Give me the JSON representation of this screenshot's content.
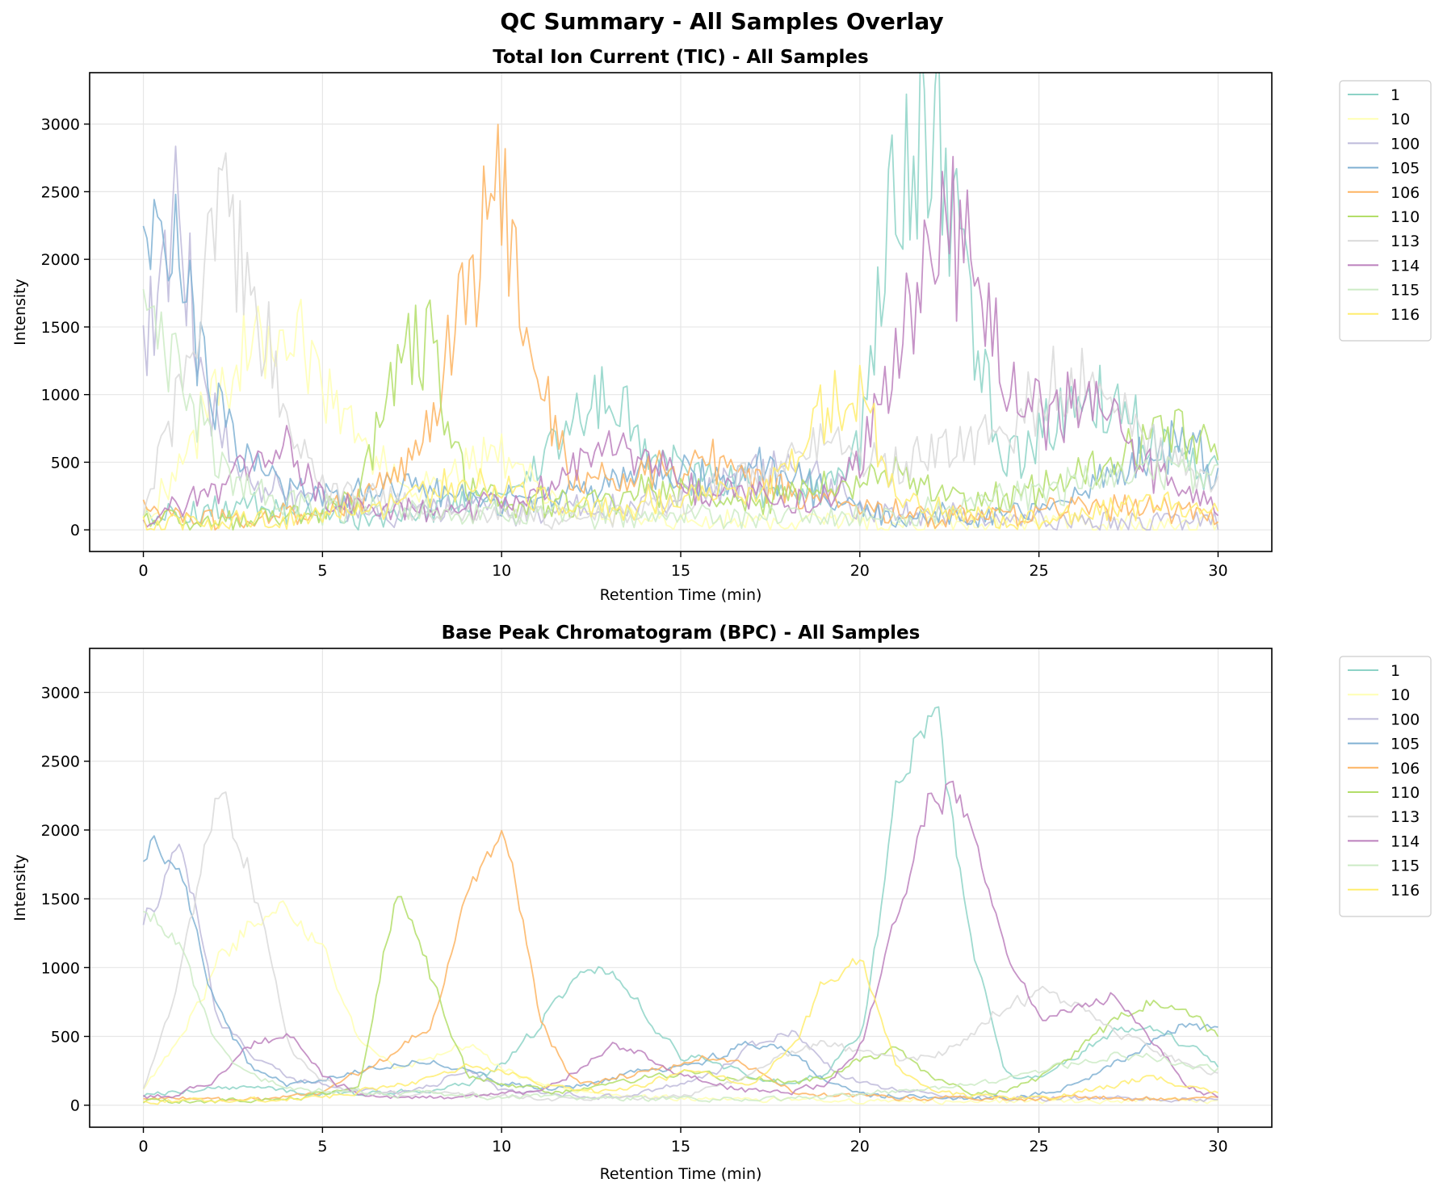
{
  "figure": {
    "suptitle": "QC Summary - All Samples Overlay"
  },
  "series_meta": [
    {
      "name": "1",
      "color": "#8dd3c7"
    },
    {
      "name": "10",
      "color": "#ffffb3"
    },
    {
      "name": "100",
      "color": "#bebada"
    },
    {
      "name": "105",
      "color": "#80b1d3"
    },
    {
      "name": "106",
      "color": "#fdb462"
    },
    {
      "name": "110",
      "color": "#b3de69"
    },
    {
      "name": "113",
      "color": "#d9d9d9"
    },
    {
      "name": "114",
      "color": "#bc80bd"
    },
    {
      "name": "115",
      "color": "#ccebc5"
    },
    {
      "name": "116",
      "color": "#ffed6f"
    }
  ],
  "chart_data": [
    {
      "type": "line",
      "title": "Total Ion Current (TIC) - All Samples",
      "xlabel": "Retention Time (min)",
      "ylabel": "Intensity",
      "xlim": [
        -1.5,
        31.5
      ],
      "ylim": [
        -160,
        3380
      ],
      "xticks": [
        0,
        5,
        10,
        15,
        20,
        25,
        30
      ],
      "yticks": [
        0,
        500,
        1000,
        1500,
        2000,
        2500,
        3000
      ],
      "grid": true,
      "legend": "outside-right",
      "x": [
        0,
        1,
        2,
        3,
        4,
        5,
        6,
        7,
        8,
        9,
        10,
        11,
        12,
        13,
        14,
        15,
        16,
        17,
        18,
        19,
        20,
        21,
        22,
        23,
        24,
        25,
        26,
        27,
        28,
        29,
        30
      ],
      "series": [
        {
          "name": "1",
          "values": [
            80,
            120,
            150,
            200,
            130,
            110,
            90,
            100,
            150,
            200,
            250,
            450,
            850,
            1000,
            700,
            450,
            400,
            350,
            250,
            350,
            600,
            2500,
            3100,
            1800,
            500,
            700,
            950,
            1000,
            700,
            500,
            500
          ]
        },
        {
          "name": "10",
          "values": [
            100,
            500,
            1000,
            1300,
            1450,
            1100,
            650,
            350,
            300,
            450,
            600,
            300,
            150,
            120,
            100,
            100,
            80,
            70,
            60,
            50,
            50,
            40,
            40,
            40,
            40,
            40,
            40,
            40,
            40,
            40,
            40
          ]
        },
        {
          "name": "100",
          "values": [
            1400,
            2300,
            800,
            350,
            300,
            200,
            150,
            120,
            150,
            200,
            150,
            120,
            150,
            150,
            200,
            250,
            300,
            400,
            450,
            350,
            150,
            120,
            100,
            100,
            80,
            80,
            60,
            60,
            60,
            60,
            60
          ]
        },
        {
          "name": "105",
          "values": [
            2050,
            1950,
            950,
            500,
            300,
            250,
            300,
            350,
            300,
            250,
            200,
            250,
            300,
            350,
            400,
            400,
            400,
            450,
            400,
            250,
            150,
            100,
            100,
            100,
            100,
            150,
            250,
            400,
            550,
            650,
            400
          ]
        },
        {
          "name": "106",
          "values": [
            150,
            100,
            80,
            80,
            100,
            120,
            250,
            450,
            800,
            1900,
            2500,
            1200,
            350,
            350,
            400,
            450,
            500,
            400,
            300,
            200,
            150,
            120,
            100,
            100,
            100,
            120,
            150,
            150,
            200,
            150,
            100
          ]
        },
        {
          "name": "110",
          "values": [
            60,
            80,
            80,
            80,
            100,
            150,
            200,
            1300,
            1500,
            300,
            200,
            200,
            200,
            250,
            300,
            300,
            250,
            250,
            250,
            300,
            400,
            400,
            300,
            250,
            250,
            300,
            400,
            550,
            700,
            750,
            600
          ]
        },
        {
          "name": "113",
          "values": [
            100,
            1000,
            2400,
            2000,
            800,
            300,
            250,
            200,
            150,
            150,
            120,
            100,
            100,
            100,
            150,
            200,
            300,
            400,
            500,
            600,
            550,
            500,
            550,
            600,
            750,
            1000,
            1150,
            900,
            700,
            500,
            300
          ]
        },
        {
          "name": "114",
          "values": [
            100,
            150,
            300,
            550,
            650,
            250,
            150,
            150,
            150,
            150,
            200,
            250,
            450,
            650,
            500,
            350,
            300,
            250,
            200,
            250,
            450,
            1300,
            2300,
            2150,
            1200,
            900,
            900,
            850,
            500,
            300,
            150
          ]
        },
        {
          "name": "115",
          "values": [
            1500,
            1200,
            500,
            300,
            200,
            150,
            150,
            150,
            150,
            120,
            120,
            120,
            120,
            100,
            100,
            100,
            100,
            100,
            100,
            100,
            100,
            120,
            150,
            200,
            250,
            300,
            350,
            400,
            400,
            400,
            350
          ]
        },
        {
          "name": "116",
          "values": [
            40,
            50,
            60,
            70,
            80,
            100,
            150,
            200,
            300,
            350,
            300,
            200,
            150,
            150,
            200,
            250,
            250,
            250,
            500,
            900,
            1050,
            300,
            150,
            100,
            80,
            80,
            100,
            150,
            200,
            180,
            150
          ]
        }
      ]
    },
    {
      "type": "line",
      "title": "Base Peak Chromatogram (BPC) - All Samples",
      "xlabel": "Retention Time (min)",
      "ylabel": "Intensity",
      "xlim": [
        -1.5,
        31.5
      ],
      "ylim": [
        -160,
        3320
      ],
      "xticks": [
        0,
        5,
        10,
        15,
        20,
        25,
        30
      ],
      "yticks": [
        0,
        500,
        1000,
        1500,
        2000,
        2500,
        3000
      ],
      "grid": true,
      "legend": "outside-right",
      "x": [
        0,
        1,
        2,
        3,
        4,
        5,
        6,
        7,
        8,
        9,
        10,
        11,
        12,
        13,
        14,
        15,
        16,
        17,
        18,
        19,
        20,
        21,
        22,
        23,
        24,
        25,
        26,
        27,
        28,
        29,
        30
      ],
      "series": [
        {
          "name": "1",
          "values": [
            80,
            100,
            120,
            150,
            100,
            80,
            80,
            100,
            100,
            150,
            300,
            600,
            900,
            950,
            650,
            350,
            300,
            200,
            150,
            250,
            550,
            2400,
            3000,
            1200,
            200,
            200,
            350,
            550,
            550,
            450,
            300
          ]
        },
        {
          "name": "10",
          "values": [
            150,
            500,
            1050,
            1350,
            1450,
            1100,
            450,
            250,
            350,
            450,
            250,
            150,
            100,
            80,
            60,
            50,
            40,
            40,
            40,
            30,
            30,
            30,
            30,
            30,
            30,
            30,
            30,
            30,
            30,
            30,
            30
          ]
        },
        {
          "name": "100",
          "values": [
            1400,
            1900,
            600,
            350,
            200,
            150,
            100,
            80,
            150,
            250,
            100,
            80,
            80,
            60,
            100,
            150,
            250,
            450,
            550,
            300,
            150,
            100,
            80,
            60,
            60,
            50,
            50,
            50,
            50,
            50,
            50
          ]
        },
        {
          "name": "105",
          "values": [
            1900,
            1650,
            700,
            250,
            150,
            200,
            250,
            300,
            300,
            250,
            150,
            120,
            150,
            200,
            250,
            300,
            350,
            450,
            400,
            150,
            80,
            60,
            50,
            50,
            50,
            80,
            150,
            300,
            450,
            600,
            550
          ]
        },
        {
          "name": "106",
          "values": [
            50,
            40,
            40,
            40,
            50,
            100,
            250,
            400,
            600,
            1600,
            2050,
            600,
            150,
            200,
            250,
            300,
            350,
            250,
            100,
            80,
            60,
            50,
            50,
            50,
            50,
            50,
            50,
            50,
            50,
            50,
            50
          ]
        },
        {
          "name": "110",
          "values": [
            30,
            30,
            30,
            40,
            50,
            80,
            150,
            1600,
            900,
            200,
            150,
            100,
            100,
            150,
            200,
            250,
            200,
            200,
            150,
            200,
            350,
            400,
            200,
            100,
            100,
            200,
            400,
            600,
            750,
            700,
            500
          ]
        },
        {
          "name": "113",
          "values": [
            150,
            1000,
            2350,
            1600,
            400,
            150,
            100,
            80,
            80,
            80,
            60,
            50,
            50,
            50,
            50,
            80,
            150,
            250,
            400,
            450,
            400,
            350,
            350,
            500,
            750,
            800,
            750,
            550,
            400,
            300,
            200
          ]
        },
        {
          "name": "114",
          "values": [
            50,
            80,
            200,
            450,
            500,
            200,
            80,
            60,
            60,
            60,
            80,
            100,
            250,
            450,
            350,
            200,
            150,
            100,
            100,
            150,
            450,
            1400,
            2350,
            2100,
            1100,
            600,
            750,
            800,
            500,
            150,
            50
          ]
        },
        {
          "name": "115",
          "values": [
            1450,
            1100,
            400,
            200,
            120,
            100,
            100,
            80,
            80,
            60,
            60,
            60,
            50,
            50,
            50,
            50,
            50,
            50,
            50,
            60,
            80,
            100,
            120,
            150,
            200,
            250,
            300,
            350,
            350,
            300,
            250
          ]
        },
        {
          "name": "116",
          "values": [
            30,
            30,
            30,
            40,
            50,
            60,
            100,
            150,
            200,
            300,
            250,
            150,
            100,
            100,
            150,
            250,
            200,
            150,
            400,
            950,
            1050,
            250,
            100,
            60,
            50,
            50,
            80,
            150,
            200,
            150,
            80
          ]
        }
      ]
    }
  ]
}
